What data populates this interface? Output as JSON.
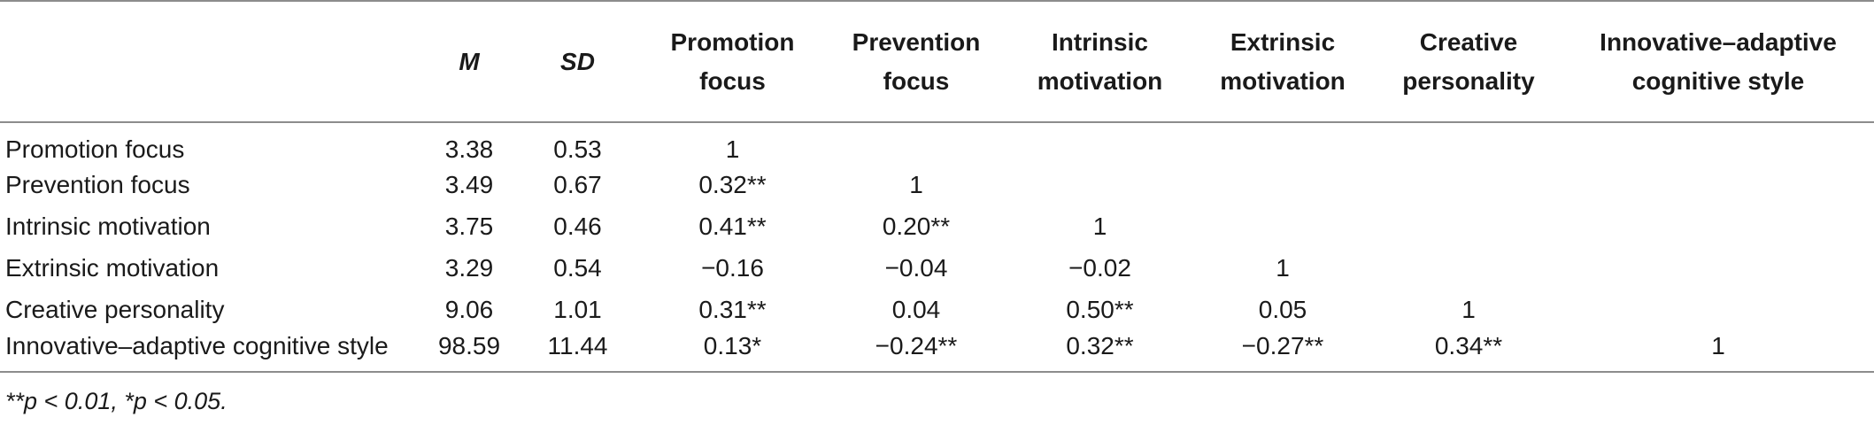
{
  "table": {
    "columns": [
      {
        "label": "M",
        "lines": [
          "M"
        ],
        "italic": true
      },
      {
        "label": "SD",
        "lines": [
          "SD"
        ],
        "italic": true
      },
      {
        "label": "Promotion focus",
        "lines": [
          "Promotion",
          "focus"
        ],
        "italic": false
      },
      {
        "label": "Prevention focus",
        "lines": [
          "Prevention",
          "focus"
        ],
        "italic": false
      },
      {
        "label": "Intrinsic motivation",
        "lines": [
          "Intrinsic",
          "motivation"
        ],
        "italic": false
      },
      {
        "label": "Extrinsic motivation",
        "lines": [
          "Extrinsic",
          "motivation"
        ],
        "italic": false
      },
      {
        "label": "Creative personality",
        "lines": [
          "Creative",
          "personality"
        ],
        "italic": false
      },
      {
        "label": "Innovative–adaptive cognitive style",
        "lines": [
          "Innovative–adaptive",
          "cognitive style"
        ],
        "italic": false
      }
    ],
    "rows": [
      {
        "label": "Promotion focus",
        "cells": [
          "3.38",
          "0.53",
          "1",
          "",
          "",
          "",
          "",
          ""
        ]
      },
      {
        "label": "Prevention focus",
        "cells": [
          "3.49",
          "0.67",
          "0.32**",
          "1",
          "",
          "",
          "",
          ""
        ]
      },
      {
        "label": "Intrinsic motivation",
        "cells": [
          "3.75",
          "0.46",
          "0.41**",
          "0.20**",
          "1",
          "",
          "",
          ""
        ]
      },
      {
        "label": "Extrinsic motivation",
        "cells": [
          "3.29",
          "0.54",
          "−0.16",
          "−0.04",
          "−0.02",
          "1",
          "",
          ""
        ]
      },
      {
        "label": "Creative personality",
        "cells": [
          "9.06",
          "1.01",
          "0.31**",
          "0.04",
          "0.50**",
          "0.05",
          "1",
          ""
        ]
      },
      {
        "label": "Innovative–adaptive cognitive style",
        "cells": [
          "98.59",
          "11.44",
          "0.13*",
          "−0.24**",
          "0.32**",
          "−0.27**",
          "0.34**",
          "1"
        ]
      }
    ],
    "note": "**p < 0.01, *p < 0.05."
  }
}
